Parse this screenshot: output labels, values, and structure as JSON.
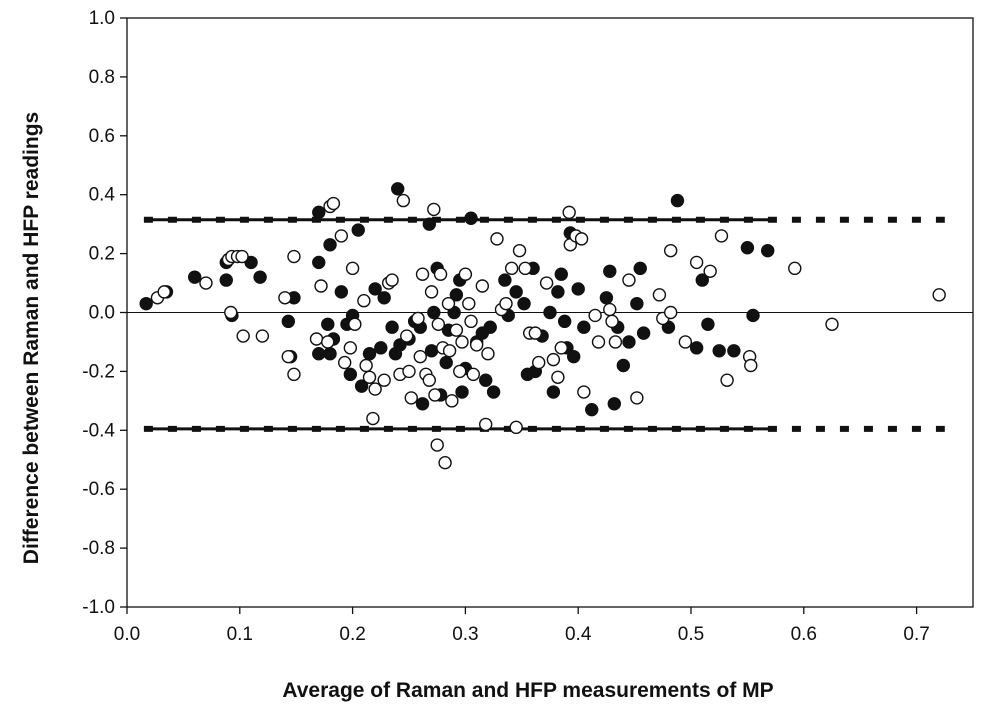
{
  "chart_data": {
    "type": "scatter",
    "title": "",
    "xlabel": "Average of Raman and HFP measurements of MP",
    "ylabel": "Difference between Raman and HFP readings",
    "xlim": [
      0.0,
      0.75
    ],
    "ylim": [
      -1.0,
      1.0
    ],
    "x_ticks": [
      "0.0",
      "0.1",
      "0.2",
      "0.3",
      "0.4",
      "0.5",
      "0.6",
      "0.7"
    ],
    "x_tick_values": [
      0.0,
      0.1,
      0.2,
      0.3,
      0.4,
      0.5,
      0.6,
      0.7
    ],
    "y_ticks": [
      "1.0",
      "0.8",
      "0.6",
      "0.4",
      "0.2",
      "0.0",
      "-0.2",
      "-0.4",
      "-0.6",
      "-0.8",
      "-1.0"
    ],
    "y_tick_values": [
      1.0,
      0.8,
      0.6,
      0.4,
      0.2,
      0.0,
      -0.2,
      -0.4,
      -0.6,
      -0.8,
      -1.0
    ],
    "grid": false,
    "legend": "none",
    "reference_lines": {
      "zero_line": {
        "y": 0.0,
        "x_range": [
          0.0,
          0.75
        ],
        "style": "solid thin"
      },
      "upper_limit": {
        "y": 0.315,
        "solid_x_range": [
          0.015,
          0.57
        ],
        "dashed_x_range": [
          0.015,
          0.725
        ]
      },
      "lower_limit": {
        "y": -0.395,
        "solid_x_range": [
          0.015,
          0.57
        ],
        "dashed_x_range": [
          0.015,
          0.725
        ]
      }
    },
    "series": [
      {
        "marker": "filled-circle",
        "color": "#111111",
        "points": [
          [
            0.017,
            0.03
          ],
          [
            0.035,
            0.07
          ],
          [
            0.06,
            0.12
          ],
          [
            0.088,
            0.17
          ],
          [
            0.088,
            0.11
          ],
          [
            0.11,
            0.17
          ],
          [
            0.118,
            0.12
          ],
          [
            0.093,
            -0.01
          ],
          [
            0.143,
            -0.03
          ],
          [
            0.148,
            0.05
          ],
          [
            0.145,
            -0.15
          ],
          [
            0.17,
            0.17
          ],
          [
            0.17,
            0.34
          ],
          [
            0.18,
            0.23
          ],
          [
            0.178,
            -0.04
          ],
          [
            0.17,
            -0.14
          ],
          [
            0.183,
            -0.09
          ],
          [
            0.18,
            -0.14
          ],
          [
            0.19,
            0.07
          ],
          [
            0.195,
            -0.04
          ],
          [
            0.198,
            -0.21
          ],
          [
            0.2,
            -0.01
          ],
          [
            0.205,
            0.28
          ],
          [
            0.208,
            -0.25
          ],
          [
            0.215,
            -0.14
          ],
          [
            0.22,
            0.08
          ],
          [
            0.225,
            -0.12
          ],
          [
            0.228,
            0.05
          ],
          [
            0.235,
            -0.05
          ],
          [
            0.238,
            -0.14
          ],
          [
            0.24,
            0.42
          ],
          [
            0.242,
            -0.11
          ],
          [
            0.25,
            -0.09
          ],
          [
            0.255,
            -0.03
          ],
          [
            0.26,
            -0.05
          ],
          [
            0.262,
            -0.31
          ],
          [
            0.268,
            0.3
          ],
          [
            0.27,
            -0.13
          ],
          [
            0.272,
            0.0
          ],
          [
            0.275,
            0.15
          ],
          [
            0.278,
            -0.28
          ],
          [
            0.283,
            -0.17
          ],
          [
            0.285,
            -0.06
          ],
          [
            0.29,
            0.0
          ],
          [
            0.292,
            0.06
          ],
          [
            0.295,
            0.11
          ],
          [
            0.297,
            -0.27
          ],
          [
            0.3,
            -0.19
          ],
          [
            0.305,
            0.32
          ],
          [
            0.31,
            -0.1
          ],
          [
            0.315,
            -0.07
          ],
          [
            0.318,
            -0.23
          ],
          [
            0.322,
            -0.05
          ],
          [
            0.325,
            -0.27
          ],
          [
            0.335,
            0.11
          ],
          [
            0.338,
            -0.01
          ],
          [
            0.345,
            0.07
          ],
          [
            0.352,
            0.03
          ],
          [
            0.355,
            -0.21
          ],
          [
            0.36,
            0.15
          ],
          [
            0.362,
            -0.2
          ],
          [
            0.368,
            -0.08
          ],
          [
            0.375,
            0.0
          ],
          [
            0.378,
            -0.27
          ],
          [
            0.382,
            0.07
          ],
          [
            0.385,
            0.13
          ],
          [
            0.388,
            -0.03
          ],
          [
            0.39,
            -0.12
          ],
          [
            0.393,
            0.27
          ],
          [
            0.396,
            -0.15
          ],
          [
            0.4,
            0.08
          ],
          [
            0.405,
            -0.05
          ],
          [
            0.412,
            -0.33
          ],
          [
            0.425,
            0.05
          ],
          [
            0.428,
            0.14
          ],
          [
            0.432,
            -0.31
          ],
          [
            0.435,
            -0.05
          ],
          [
            0.44,
            -0.18
          ],
          [
            0.445,
            -0.1
          ],
          [
            0.452,
            0.03
          ],
          [
            0.455,
            0.15
          ],
          [
            0.458,
            -0.07
          ],
          [
            0.48,
            -0.05
          ],
          [
            0.488,
            0.38
          ],
          [
            0.505,
            -0.12
          ],
          [
            0.51,
            0.11
          ],
          [
            0.515,
            -0.04
          ],
          [
            0.525,
            -0.13
          ],
          [
            0.538,
            -0.13
          ],
          [
            0.55,
            0.22
          ],
          [
            0.555,
            -0.01
          ],
          [
            0.568,
            0.21
          ]
        ]
      },
      {
        "marker": "open-circle",
        "color": "#111111",
        "points": [
          [
            0.027,
            0.05
          ],
          [
            0.033,
            0.07
          ],
          [
            0.07,
            0.1
          ],
          [
            0.09,
            0.18
          ],
          [
            0.093,
            0.19
          ],
          [
            0.098,
            0.19
          ],
          [
            0.102,
            0.19
          ],
          [
            0.092,
            0.0
          ],
          [
            0.103,
            -0.08
          ],
          [
            0.12,
            -0.08
          ],
          [
            0.14,
            0.05
          ],
          [
            0.143,
            -0.15
          ],
          [
            0.148,
            -0.21
          ],
          [
            0.148,
            0.19
          ],
          [
            0.168,
            -0.09
          ],
          [
            0.172,
            0.09
          ],
          [
            0.18,
            0.36
          ],
          [
            0.183,
            0.37
          ],
          [
            0.178,
            -0.1
          ],
          [
            0.19,
            0.26
          ],
          [
            0.193,
            -0.17
          ],
          [
            0.198,
            -0.12
          ],
          [
            0.2,
            0.15
          ],
          [
            0.202,
            -0.04
          ],
          [
            0.21,
            0.04
          ],
          [
            0.212,
            -0.18
          ],
          [
            0.215,
            -0.22
          ],
          [
            0.218,
            -0.36
          ],
          [
            0.22,
            -0.26
          ],
          [
            0.228,
            -0.23
          ],
          [
            0.232,
            0.1
          ],
          [
            0.235,
            0.11
          ],
          [
            0.242,
            -0.21
          ],
          [
            0.245,
            0.38
          ],
          [
            0.248,
            -0.08
          ],
          [
            0.25,
            -0.2
          ],
          [
            0.252,
            -0.29
          ],
          [
            0.258,
            -0.02
          ],
          [
            0.26,
            -0.15
          ],
          [
            0.262,
            0.13
          ],
          [
            0.265,
            -0.21
          ],
          [
            0.268,
            -0.23
          ],
          [
            0.27,
            0.07
          ],
          [
            0.272,
            0.35
          ],
          [
            0.273,
            -0.28
          ],
          [
            0.275,
            -0.45
          ],
          [
            0.276,
            -0.04
          ],
          [
            0.278,
            0.13
          ],
          [
            0.28,
            -0.12
          ],
          [
            0.282,
            -0.51
          ],
          [
            0.285,
            0.03
          ],
          [
            0.286,
            -0.13
          ],
          [
            0.288,
            -0.3
          ],
          [
            0.292,
            -0.06
          ],
          [
            0.295,
            -0.2
          ],
          [
            0.297,
            -0.1
          ],
          [
            0.3,
            0.13
          ],
          [
            0.303,
            0.03
          ],
          [
            0.305,
            -0.03
          ],
          [
            0.307,
            -0.21
          ],
          [
            0.31,
            -0.11
          ],
          [
            0.315,
            0.09
          ],
          [
            0.318,
            -0.38
          ],
          [
            0.32,
            -0.14
          ],
          [
            0.328,
            0.25
          ],
          [
            0.332,
            0.01
          ],
          [
            0.336,
            0.03
          ],
          [
            0.341,
            0.15
          ],
          [
            0.345,
            -0.39
          ],
          [
            0.348,
            0.21
          ],
          [
            0.353,
            0.15
          ],
          [
            0.357,
            -0.07
          ],
          [
            0.362,
            -0.07
          ],
          [
            0.365,
            -0.17
          ],
          [
            0.372,
            0.1
          ],
          [
            0.378,
            -0.16
          ],
          [
            0.382,
            -0.22
          ],
          [
            0.385,
            -0.12
          ],
          [
            0.392,
            0.34
          ],
          [
            0.393,
            0.23
          ],
          [
            0.398,
            0.26
          ],
          [
            0.403,
            0.25
          ],
          [
            0.405,
            -0.27
          ],
          [
            0.415,
            -0.01
          ],
          [
            0.418,
            -0.1
          ],
          [
            0.428,
            0.01
          ],
          [
            0.43,
            -0.03
          ],
          [
            0.433,
            -0.1
          ],
          [
            0.445,
            0.11
          ],
          [
            0.452,
            -0.29
          ],
          [
            0.472,
            0.06
          ],
          [
            0.475,
            -0.02
          ],
          [
            0.482,
            0.0
          ],
          [
            0.482,
            0.21
          ],
          [
            0.495,
            -0.1
          ],
          [
            0.505,
            0.17
          ],
          [
            0.517,
            0.14
          ],
          [
            0.527,
            0.26
          ],
          [
            0.532,
            -0.23
          ],
          [
            0.552,
            -0.15
          ],
          [
            0.553,
            -0.18
          ],
          [
            0.592,
            0.15
          ],
          [
            0.625,
            -0.04
          ],
          [
            0.72,
            0.06
          ]
        ]
      }
    ]
  }
}
